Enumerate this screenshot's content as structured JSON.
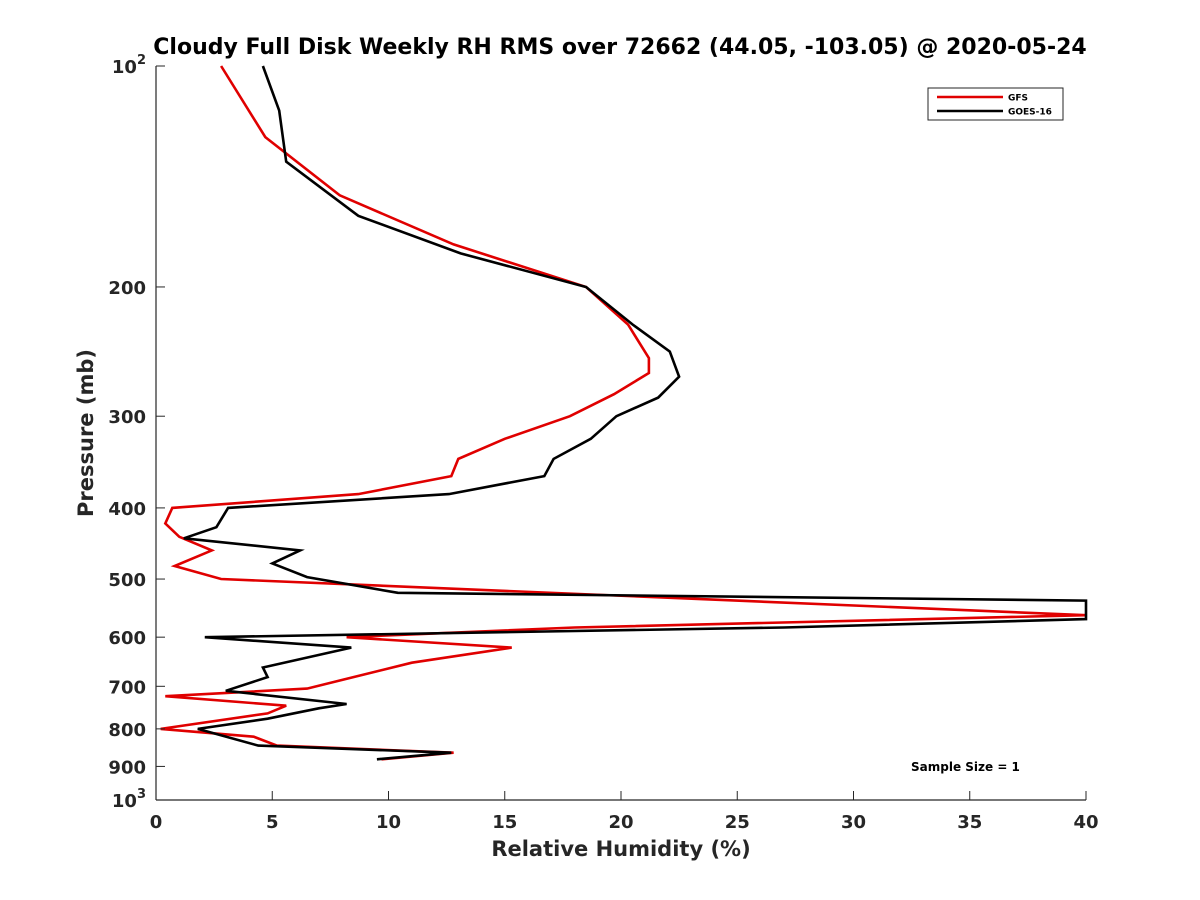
{
  "chart_data": {
    "type": "line",
    "title": "Cloudy Full Disk Weekly RH RMS over 72662 (44.05, -103.05) @ 2020-05-24",
    "xlabel": "Relative Humidity (%)",
    "ylabel": "Pressure (mb)",
    "xlim": [
      0,
      40
    ],
    "ylim": [
      100,
      1000
    ],
    "y_scale": "log",
    "y_reversed": true,
    "grid": false,
    "legend_position": "top-right",
    "x_ticks": [
      0,
      5,
      10,
      15,
      20,
      25,
      30,
      35,
      40
    ],
    "y_ticks": [
      {
        "value": 100,
        "base": "10",
        "exp": "2"
      },
      {
        "value": 200,
        "label": "200"
      },
      {
        "value": 300,
        "label": "300"
      },
      {
        "value": 400,
        "label": "400"
      },
      {
        "value": 500,
        "label": "500"
      },
      {
        "value": 600,
        "label": "600"
      },
      {
        "value": 700,
        "label": "700"
      },
      {
        "value": 800,
        "label": "800"
      },
      {
        "value": 900,
        "label": "900"
      },
      {
        "value": 1000,
        "base": "10",
        "exp": "3"
      }
    ],
    "annotation": "Sample Size = 1",
    "series": [
      {
        "name": "GFS",
        "color": "#e00000",
        "points": [
          [
            2.8,
            100
          ],
          [
            4.7,
            125
          ],
          [
            7.9,
            150
          ],
          [
            12.8,
            175
          ],
          [
            18.5,
            200
          ],
          [
            20.3,
            225
          ],
          [
            21.2,
            250
          ],
          [
            21.2,
            262
          ],
          [
            19.7,
            280
          ],
          [
            17.8,
            300
          ],
          [
            15.0,
            322
          ],
          [
            13.0,
            343
          ],
          [
            12.7,
            362
          ],
          [
            8.7,
            383
          ],
          [
            0.7,
            400
          ],
          [
            0.4,
            420
          ],
          [
            1.0,
            438
          ],
          [
            2.4,
            457
          ],
          [
            0.8,
            480
          ],
          [
            2.8,
            500
          ],
          [
            40,
            560
          ],
          [
            18,
            582
          ],
          [
            8.2,
            600
          ],
          [
            15.3,
            620
          ],
          [
            11.0,
            650
          ],
          [
            8.1,
            685
          ],
          [
            6.5,
            705
          ],
          [
            0.4,
            722
          ],
          [
            5.6,
            744
          ],
          [
            4.8,
            762
          ],
          [
            0.2,
            800
          ],
          [
            4.2,
            820
          ],
          [
            5.2,
            843
          ],
          [
            12.8,
            862
          ],
          [
            9.7,
            880
          ]
        ]
      },
      {
        "name": "GOES-16",
        "color": "#000000",
        "points": [
          [
            4.6,
            100
          ],
          [
            5.3,
            115
          ],
          [
            5.6,
            135
          ],
          [
            8.7,
            160
          ],
          [
            13.1,
            180
          ],
          [
            18.5,
            200
          ],
          [
            20.5,
            225
          ],
          [
            22.1,
            245
          ],
          [
            22.5,
            265
          ],
          [
            21.6,
            283
          ],
          [
            19.8,
            300
          ],
          [
            18.7,
            322
          ],
          [
            17.1,
            343
          ],
          [
            16.7,
            362
          ],
          [
            12.6,
            383
          ],
          [
            3.1,
            400
          ],
          [
            2.6,
            425
          ],
          [
            1.2,
            440
          ],
          [
            6.2,
            457
          ],
          [
            5.0,
            476
          ],
          [
            6.5,
            497
          ],
          [
            10.4,
            522
          ],
          [
            40,
            535
          ],
          [
            40,
            567
          ],
          [
            27,
            582
          ],
          [
            2.1,
            600
          ],
          [
            8.4,
            620
          ],
          [
            4.6,
            660
          ],
          [
            4.8,
            680
          ],
          [
            3.0,
            710
          ],
          [
            8.2,
            740
          ],
          [
            7.0,
            750
          ],
          [
            4.8,
            775
          ],
          [
            1.8,
            800
          ],
          [
            4.4,
            843
          ],
          [
            12.7,
            862
          ],
          [
            9.5,
            880
          ]
        ]
      }
    ]
  }
}
